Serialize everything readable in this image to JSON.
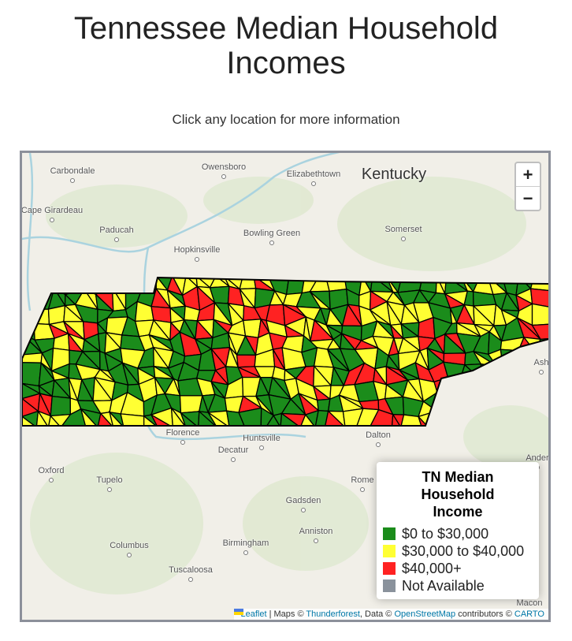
{
  "title": "Tennessee Median Household Incomes",
  "subtitle": "Click any location for more information",
  "map": {
    "region_label": "Kentucky",
    "places": [
      "Carbondale",
      "Owensboro",
      "Elizabethtown",
      "Cape Girardeau",
      "Paducah",
      "Bowling Green",
      "Hopkinsville",
      "Somerset",
      "Florence",
      "Huntsville",
      "Decatur",
      "Dalton",
      "Oxford",
      "Tupelo",
      "Rome",
      "Gadsden",
      "Anniston",
      "Columbus",
      "Birmingham",
      "Tuscaloosa",
      "Macon",
      "Ash",
      "Ander"
    ],
    "zoom_in": "+",
    "zoom_out": "−",
    "legend": {
      "title": "TN Median Household Income",
      "items": [
        {
          "label": "$0 to $30,000",
          "color": "#1b8c1b"
        },
        {
          "label": "$30,000 to $40,000",
          "color": "#ffff33"
        },
        {
          "label": "$40,000+",
          "color": "#ff2222"
        },
        {
          "label": "Not Available",
          "color": "#8a929c"
        }
      ]
    },
    "attribution": [
      {
        "text": "Leaflet",
        "link": true
      },
      {
        "text": " | Maps © ",
        "link": false
      },
      {
        "text": "Thunderforest",
        "link": true
      },
      {
        "text": ", Data © ",
        "link": false
      },
      {
        "text": "OpenStreetMap",
        "link": true
      },
      {
        "text": " contributors © ",
        "link": false
      },
      {
        "text": "CARTO",
        "link": true
      }
    ]
  }
}
